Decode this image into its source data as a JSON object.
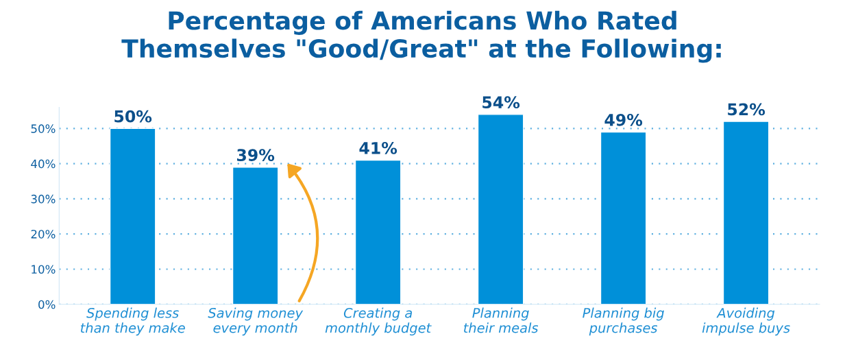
{
  "chart_data": {
    "type": "bar",
    "title": "Percentage of Americans Who Rated\nThemselves \"Good/Great\" at the Following:",
    "categories": [
      "Spending less\nthan they make",
      "Saving money\nevery month",
      "Creating a\nmonthly budget",
      "Planning\ntheir meals",
      "Planning big\npurchases",
      "Avoiding\nimpulse buys"
    ],
    "values": [
      50,
      39,
      41,
      54,
      49,
      52
    ],
    "value_labels": [
      "50%",
      "39%",
      "41%",
      "54%",
      "49%",
      "52%"
    ],
    "color": "#0090d9",
    "ylim": [
      0,
      56
    ],
    "yticks": [
      {
        "value": 0,
        "label": "0%"
      },
      {
        "value": 10,
        "label": "10%"
      },
      {
        "value": 20,
        "label": "20%"
      },
      {
        "value": 30,
        "label": "30%"
      },
      {
        "value": 40,
        "label": "40%"
      },
      {
        "value": 50,
        "label": "50%"
      }
    ],
    "grid": "y"
  }
}
